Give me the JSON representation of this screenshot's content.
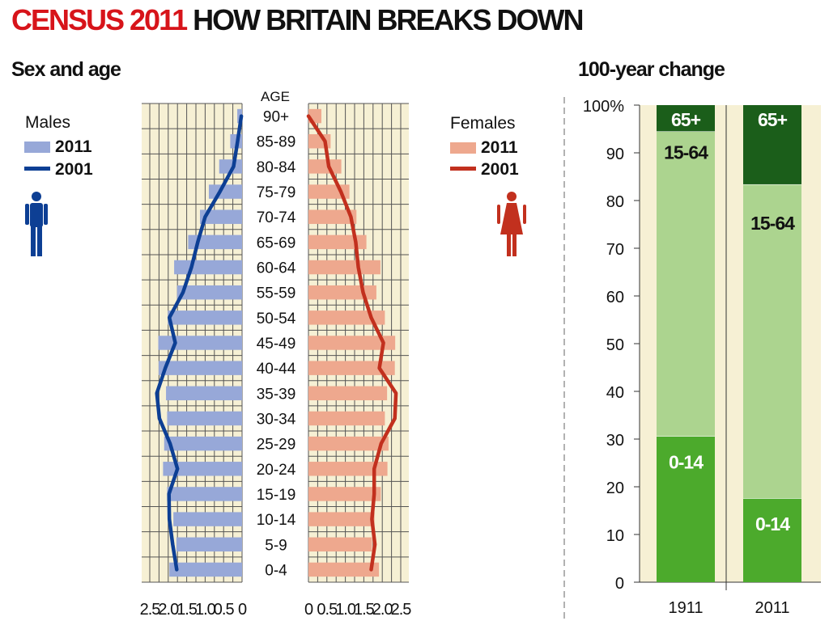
{
  "header": {
    "title_red": "CENSUS 2011",
    "title_black": "HOW BRITAIN BREAKS DOWN",
    "left_subtitle": "Sex and age",
    "right_subtitle": "100-year change"
  },
  "colors": {
    "title_red": "#d7141a",
    "background_panel": "#f6f0d4",
    "grid": "#555555",
    "male_2011": "#97a8d8",
    "male_2001": "#0d3f94",
    "female_2011": "#eea88e",
    "female_2001": "#c2301e",
    "green_0_14": "#4caa2c",
    "green_15_64": "#acd48f",
    "green_65plus": "#1b5e1a"
  },
  "chart_data": [
    {
      "type": "bar",
      "subtype": "population-pyramid",
      "title": "Sex and age",
      "center_label": "AGE",
      "categories": [
        "90+",
        "85-89",
        "80-84",
        "75-79",
        "70-74",
        "65-69",
        "60-64",
        "55-59",
        "50-54",
        "45-49",
        "40-44",
        "35-39",
        "30-34",
        "25-29",
        "20-24",
        "15-19",
        "10-14",
        "5-9",
        "0-4"
      ],
      "males": {
        "panel_label": "Males",
        "x_ticks": [
          "2.5",
          "2.0",
          "1.5",
          "1.0",
          "0.5",
          "0"
        ],
        "xlim": [
          0,
          2.5
        ],
        "series": [
          {
            "name": "2011",
            "kind": "bar",
            "values": [
              0.13,
              0.32,
              0.62,
              0.9,
              1.14,
              1.46,
              1.84,
              1.76,
              2.01,
              2.27,
              2.26,
              2.06,
              2.03,
              2.11,
              2.14,
              2.03,
              1.86,
              1.78,
              1.97
            ]
          },
          {
            "name": "2001",
            "kind": "line",
            "values": [
              0.02,
              0.12,
              0.23,
              0.6,
              1.0,
              1.2,
              1.37,
              1.6,
              1.97,
              1.81,
              2.08,
              2.31,
              2.24,
              1.95,
              1.75,
              1.98,
              1.97,
              1.88,
              1.77
            ]
          }
        ]
      },
      "females": {
        "panel_label": "Females",
        "x_ticks": [
          "0",
          "0.5",
          "1.0",
          "1.5",
          "2.0",
          "2.5"
        ],
        "xlim": [
          0,
          2.5
        ],
        "series": [
          {
            "name": "2011",
            "kind": "bar",
            "values": [
              0.35,
              0.6,
              0.89,
              1.11,
              1.3,
              1.57,
              1.95,
              1.84,
              2.07,
              2.35,
              2.34,
              2.13,
              2.07,
              2.17,
              2.14,
              1.96,
              1.79,
              1.72,
              1.91
            ]
          },
          {
            "name": "2001",
            "kind": "line",
            "values": [
              0.0,
              0.45,
              0.55,
              0.88,
              1.15,
              1.28,
              1.35,
              1.48,
              1.7,
              2.03,
              1.92,
              2.37,
              2.34,
              1.97,
              1.78,
              1.78,
              1.72,
              1.8,
              1.7
            ]
          }
        ]
      }
    },
    {
      "type": "bar",
      "subtype": "stacked-100",
      "title": "100-year change",
      "categories": [
        "1911",
        "2011"
      ],
      "y_ticks": [
        "100%",
        "90",
        "80",
        "70",
        "60",
        "50",
        "40",
        "30",
        "20",
        "10",
        "0"
      ],
      "ylim": [
        0,
        100
      ],
      "series": [
        {
          "name": "0-14",
          "values": [
            30.6,
            17.6
          ]
        },
        {
          "name": "15-64",
          "values": [
            63.9,
            65.8
          ]
        },
        {
          "name": "65+",
          "values": [
            5.5,
            16.6
          ]
        }
      ]
    }
  ]
}
